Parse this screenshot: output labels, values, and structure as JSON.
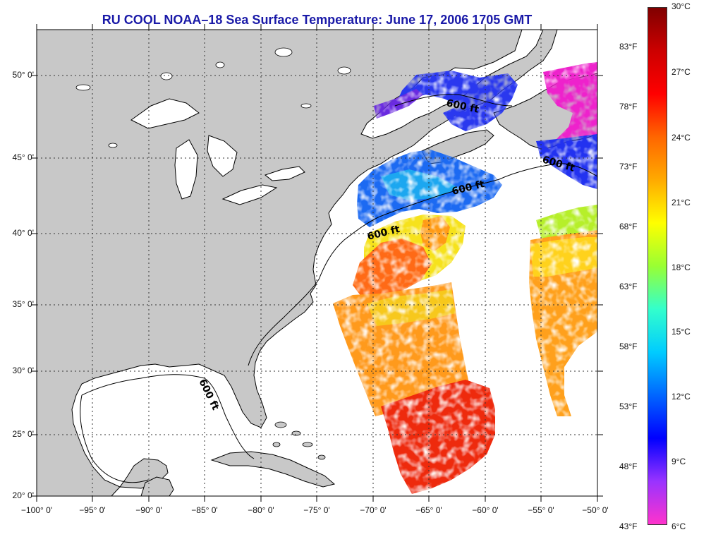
{
  "title": "RU COOL  NOAA–18  Sea Surface Temperature:  June 17, 2006 1705 GMT",
  "map": {
    "lon_range": [
      -100,
      -50
    ],
    "lat_range": [
      20,
      52.5
    ],
    "lat_ticks": [
      {
        "value": 50,
        "label": "50° 0'"
      },
      {
        "value": 45,
        "label": "45° 0'"
      },
      {
        "value": 40,
        "label": "40° 0'"
      },
      {
        "value": 35,
        "label": "35° 0'"
      },
      {
        "value": 30,
        "label": "30° 0'"
      },
      {
        "value": 25,
        "label": "25° 0'"
      },
      {
        "value": 20,
        "label": "20° 0'"
      }
    ],
    "lon_ticks": [
      {
        "value": -100,
        "label": "−100° 0'"
      },
      {
        "value": -95,
        "label": "−95° 0'"
      },
      {
        "value": -90,
        "label": "−90° 0'"
      },
      {
        "value": -85,
        "label": "−85° 0'"
      },
      {
        "value": -80,
        "label": "−80° 0'"
      },
      {
        "value": -75,
        "label": "−75° 0'"
      },
      {
        "value": -70,
        "label": "−70° 0'"
      },
      {
        "value": -65,
        "label": "−65° 0'"
      },
      {
        "value": -60,
        "label": "−60° 0'"
      },
      {
        "value": -55,
        "label": "−55° 0'"
      },
      {
        "value": -50,
        "label": "−50° 0'"
      }
    ],
    "grid": "dotted",
    "land_color": "#c8c8c8",
    "isobath_labels": [
      "600 ft",
      "600 ft",
      "600 ft",
      "600 ft",
      "600 ft"
    ]
  },
  "colorbar": {
    "celsius_labels": [
      "30°C",
      "27°C",
      "24°C",
      "21°C",
      "18°C",
      "15°C",
      "12°C",
      "9°C",
      "6°C"
    ],
    "fahrenheit_labels": [
      "83°F",
      "78°F",
      "73°F",
      "68°F",
      "63°F",
      "58°F",
      "53°F",
      "48°F",
      "43°F"
    ],
    "celsius_range": [
      6,
      30
    ],
    "fahrenheit_range": [
      43,
      83
    ],
    "colors": [
      "#ff33cc",
      "#9933ff",
      "#0000ff",
      "#0066ff",
      "#00ccff",
      "#33ffcc",
      "#99ff33",
      "#ffff00",
      "#ffaa00",
      "#ff6600",
      "#ff0000",
      "#cc0000",
      "#800000"
    ]
  }
}
